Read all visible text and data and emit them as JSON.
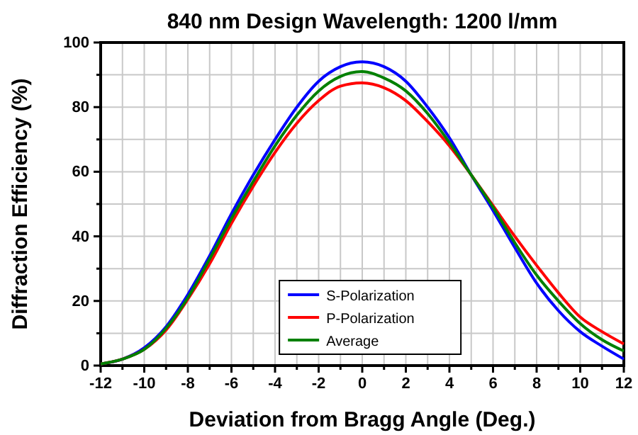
{
  "chart_data": {
    "type": "line",
    "title": "840 nm Design Wavelength: 1200 l/mm",
    "xlabel": "Deviation from Bragg Angle (Deg.)",
    "ylabel": "Diffraction Efficiency (%)",
    "x": [
      -12,
      -11,
      -10,
      -9,
      -8,
      -7,
      -6,
      -5,
      -4,
      -3,
      -2,
      -1,
      0,
      1,
      2,
      3,
      4,
      5,
      6,
      7,
      8,
      9,
      10,
      11,
      12
    ],
    "series": [
      {
        "name": "S-Polarization",
        "color": "#0000ff",
        "values": [
          0.5,
          2,
          5.5,
          12,
          22,
          34,
          47,
          59,
          70,
          80,
          88,
          92.5,
          94,
          92.5,
          88,
          80,
          70.5,
          59,
          48,
          36.5,
          25.5,
          17,
          10.5,
          6,
          2
        ]
      },
      {
        "name": "P-Polarization",
        "color": "#ff0000",
        "values": [
          0.5,
          2,
          5,
          11,
          20.5,
          31.5,
          44,
          55.5,
          66,
          75,
          82,
          86.5,
          87.5,
          86,
          82,
          75.5,
          68,
          59,
          49.5,
          40,
          31,
          22.5,
          15,
          10.5,
          6.7
        ]
      },
      {
        "name": "Average",
        "color": "#008000",
        "values": [
          0.5,
          2,
          5,
          11.5,
          21,
          33,
          45.5,
          57,
          68,
          77.5,
          85,
          89.5,
          91,
          89,
          85,
          78,
          69,
          59,
          49,
          38,
          28,
          20,
          13,
          8,
          4.5
        ]
      }
    ],
    "xlim": [
      -12,
      12
    ],
    "ylim": [
      0,
      100
    ],
    "xticks": [
      -12,
      {
        "value": -11,
        "label": null
      },
      -10,
      {
        "value": -9,
        "label": null
      },
      -8,
      {
        "value": -7,
        "label": null
      },
      -6,
      {
        "value": -5,
        "label": null
      },
      -4,
      {
        "value": -3,
        "label": null
      },
      -2,
      {
        "value": -1,
        "label": null
      },
      0,
      {
        "value": 1,
        "label": null
      },
      2,
      {
        "value": 3,
        "label": null
      },
      4,
      {
        "value": 5,
        "label": null
      },
      6,
      {
        "value": 7,
        "label": null
      },
      8,
      {
        "value": 9,
        "label": null
      },
      10,
      {
        "value": 11,
        "label": null
      },
      12
    ],
    "yticks": [
      0,
      {
        "value": 10,
        "label": null
      },
      20,
      {
        "value": 30,
        "label": null
      },
      40,
      {
        "value": 50,
        "label": null
      },
      60,
      {
        "value": 70,
        "label": null
      },
      80,
      {
        "value": 90,
        "label": null
      },
      100
    ],
    "grid": true,
    "legend": "bottom right",
    "line_style": "solid",
    "marker": "none"
  }
}
